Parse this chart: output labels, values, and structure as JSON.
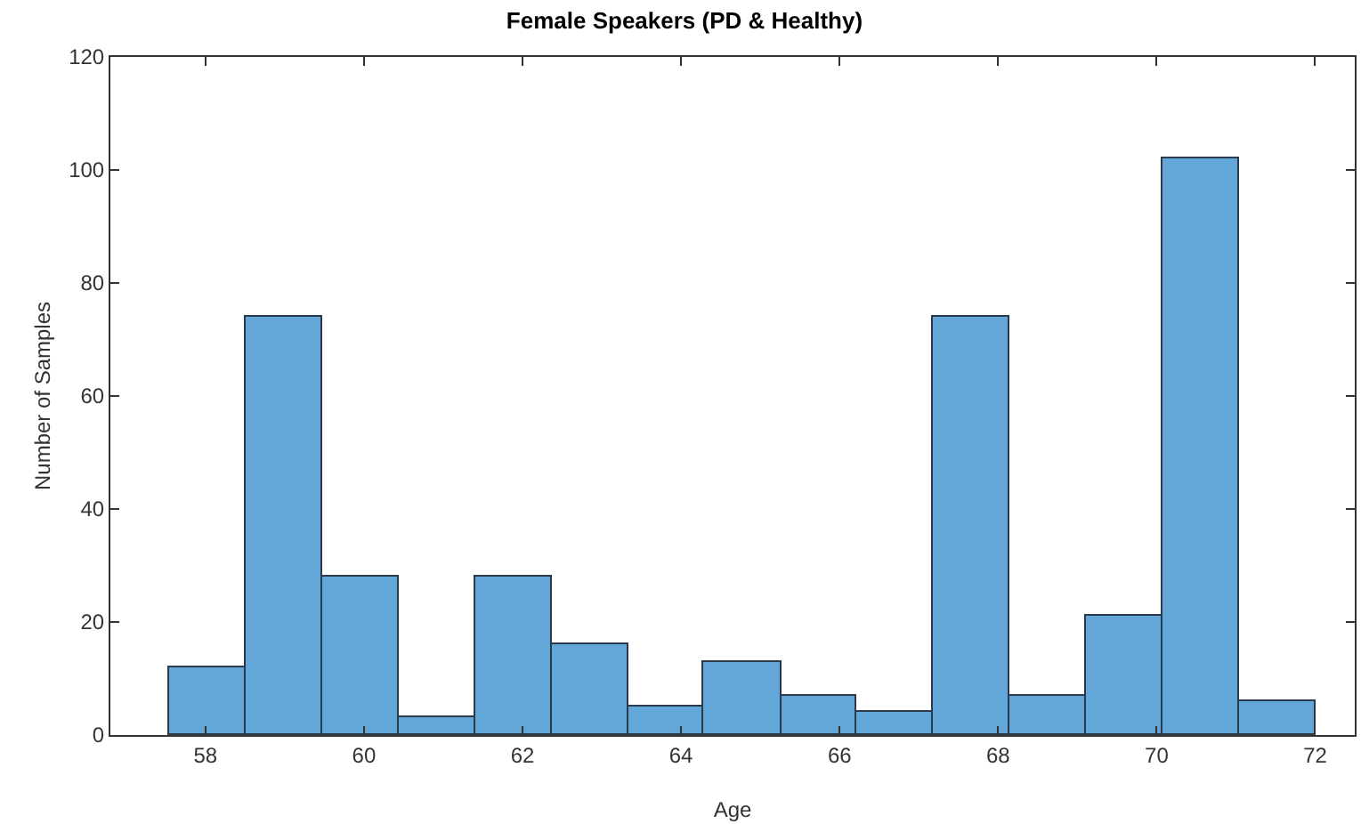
{
  "chart_data": {
    "type": "histogram",
    "title": "Female Speakers (PD & Healthy)",
    "xlabel": "Age",
    "ylabel": "Number of Samples",
    "bins": [
      57.55,
      58.51,
      59.48,
      60.44,
      61.4,
      62.37,
      63.33,
      64.29,
      65.26,
      66.22,
      67.18,
      68.15,
      69.11,
      70.07,
      71.04,
      72.0
    ],
    "values": [
      12,
      74,
      28,
      3,
      28,
      16,
      5,
      13,
      7,
      4,
      74,
      7,
      21,
      102,
      6
    ],
    "color": "#63a7d8",
    "xlim": [
      56.8,
      72.5
    ],
    "xticks": [
      58,
      60,
      62,
      64,
      66,
      68,
      70,
      72
    ],
    "ylim": [
      0,
      120
    ],
    "yticks": [
      0,
      20,
      40,
      60,
      80,
      100,
      120
    ],
    "grid": false
  }
}
